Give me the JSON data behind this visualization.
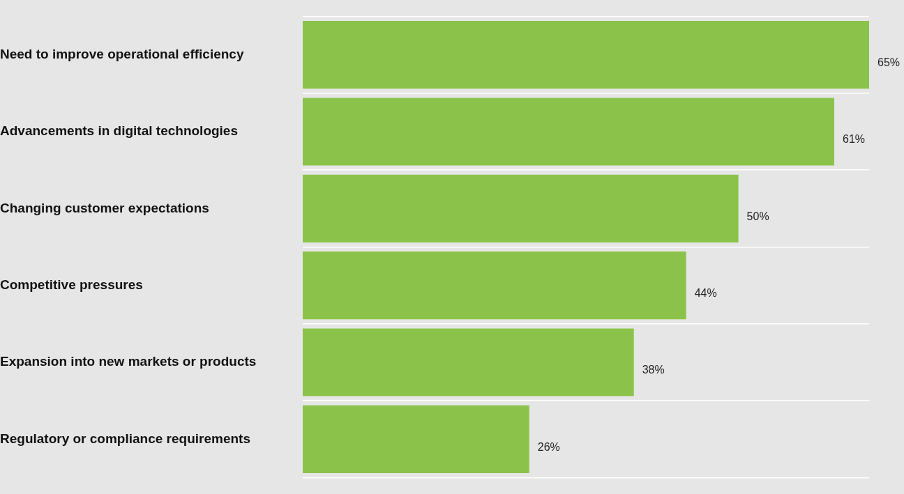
{
  "chart_data": {
    "type": "bar",
    "orientation": "horizontal",
    "categories": [
      "Need to improve operational efficiency",
      "Advancements in digital technologies",
      "Changing customer expectations",
      "Competitive pressures",
      "Expansion into new markets or products",
      "Regulatory or compliance requirements"
    ],
    "values": [
      65,
      61,
      50,
      44,
      38,
      26
    ],
    "value_labels": [
      "65%",
      "61%",
      "50%",
      "44%",
      "38%",
      "26%"
    ],
    "color": "#8bc34a",
    "grid": "y",
    "tick_labels": "y",
    "legend": false
  }
}
